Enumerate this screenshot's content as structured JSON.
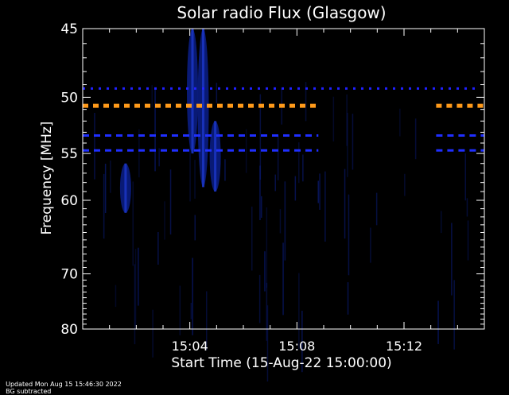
{
  "chart_data": {
    "type": "heatmap",
    "title": "Solar radio Flux (Glasgow)",
    "xlabel": "Start Time (15-Aug-22 15:00:00)",
    "ylabel": "Frequency [MHz]",
    "x_range_minutes": [
      0.0,
      15.0
    ],
    "x_ticks": [
      {
        "minute": 4,
        "label": "15:04"
      },
      {
        "minute": 8,
        "label": "15:08"
      },
      {
        "minute": 12,
        "label": "15:12"
      }
    ],
    "y_range_mhz": [
      45,
      80
    ],
    "y_ticks": [
      {
        "mhz": 45,
        "label": "45"
      },
      {
        "mhz": 50,
        "label": "50"
      },
      {
        "mhz": 55,
        "label": "55"
      },
      {
        "mhz": 60,
        "label": "60"
      },
      {
        "mhz": 70,
        "label": "70"
      },
      {
        "mhz": 80,
        "label": "80"
      }
    ],
    "interference_bands": [
      {
        "mhz": 49.3,
        "color": "#2020ff",
        "segments": [
          [
            0.0,
            14.8
          ]
        ]
      },
      {
        "mhz": 50.7,
        "color": "#ff9a1a",
        "segments": [
          [
            0.0,
            8.8
          ],
          [
            13.2,
            15.0
          ]
        ]
      },
      {
        "mhz": 53.3,
        "color": "#1f2fff",
        "segments": [
          [
            0.0,
            8.8
          ],
          [
            13.2,
            15.0
          ]
        ]
      },
      {
        "mhz": 54.7,
        "color": "#1f2fff",
        "segments": [
          [
            0.0,
            8.8
          ],
          [
            13.2,
            15.0
          ]
        ]
      }
    ],
    "bursts": [
      {
        "minute": 1.6,
        "mhz_from": 56.0,
        "mhz_to": 61.5
      },
      {
        "minute": 4.1,
        "mhz_from": 45.0,
        "mhz_to": 55.0
      },
      {
        "minute": 4.5,
        "mhz_from": 45.0,
        "mhz_to": 58.5
      },
      {
        "minute": 4.95,
        "mhz_from": 52.0,
        "mhz_to": 59.0
      }
    ],
    "colors": {
      "background": "#000000",
      "axes": "#ffffff",
      "signal": "#0b1f8a"
    }
  },
  "footer": {
    "updated": "Updated Mon Aug 15 15:46:30 2022",
    "note": "BG subtracted"
  }
}
